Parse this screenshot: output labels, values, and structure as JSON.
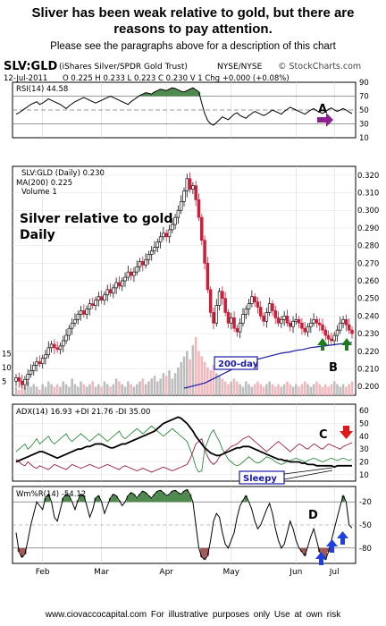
{
  "header": {
    "title_line1": "Sliver has been weak relative to gold, but there are",
    "title_line2": "reasons to pay attention.",
    "subtitle": "Please see the paragraphs above for a description of this chart"
  },
  "footer": {
    "text": "www.ciovaccocapital.com   For illustrative purposes only   Use at own risk"
  },
  "info": {
    "symbol": "SLV:GLD",
    "description": "(iShares Silver/SPDR Gold Trust)",
    "exchange": "NYSE/NYSE",
    "watermark": "© StockCharts.com",
    "date": "12-Jul-2011",
    "ohlc": "O 0.225  H 0.233  L 0.223  C 0.230  V 1  Chg +0.000 (+0.08%)"
  },
  "colors": {
    "up": "#111111",
    "down": "#cc1f3a",
    "ma": "#1a1aa6",
    "adx": "#000000",
    "plus_di": "#2e8b3e",
    "minus_di": "#9c1f46",
    "fill_green": "#4f8a4f",
    "fill_red": "#a05a5a",
    "vol_up": "#bdbdbd",
    "vol_down": "#f2b8bd",
    "arrow_purple": "#8e1f8e",
    "arrow_green": "#1d7c1d",
    "arrow_red": "#e01818",
    "arrow_blue": "#1f3fe0"
  },
  "chart_data": [
    {
      "type": "line",
      "panel": "RSI",
      "legend": "RSI(14) 44.58",
      "ylim": [
        10,
        90
      ],
      "ticks": [
        10,
        30,
        50,
        70,
        90
      ],
      "levels": [
        70,
        30
      ],
      "series": [
        {
          "name": "RSI(14)",
          "values": [
            44,
            46,
            49,
            52,
            55,
            58,
            60,
            62,
            58,
            60,
            63,
            66,
            64,
            62,
            60,
            58,
            55,
            52,
            56,
            59,
            62,
            64,
            66,
            68,
            66,
            64,
            62,
            60,
            62,
            64,
            66,
            68,
            70,
            68,
            66,
            64,
            62,
            60,
            58,
            62,
            65,
            68,
            71,
            73,
            75,
            74,
            73,
            76,
            78,
            80,
            79,
            78,
            80,
            82,
            81,
            79,
            77,
            76,
            78,
            80,
            82,
            79,
            76,
            60,
            45,
            35,
            30,
            28,
            32,
            36,
            40,
            38,
            36,
            40,
            44,
            46,
            42,
            40,
            38,
            42,
            45,
            48,
            46,
            44,
            42,
            44,
            47,
            50,
            48,
            46,
            44,
            48,
            51,
            54,
            52,
            50,
            48,
            46,
            44,
            47,
            50,
            52,
            49,
            47,
            45,
            48,
            51,
            53,
            50,
            48,
            50,
            52,
            50,
            47,
            45
          ]
        }
      ]
    },
    {
      "type": "candlestick",
      "panel": "Price",
      "legend_price": "SLV:GLD (Daily) 0.230",
      "legend_ma": "MA(200) 0.225",
      "legend_volume": "Volume 1",
      "annotation": "Silver relative to gold\nDaily",
      "ylim": [
        0.195,
        0.325
      ],
      "ticks": [
        0.2,
        0.21,
        0.22,
        0.23,
        0.24,
        0.25,
        0.26,
        0.27,
        0.28,
        0.29,
        0.3,
        0.31,
        0.32
      ],
      "volume_ticks": [
        5,
        10,
        15
      ],
      "close": [
        0.205,
        0.203,
        0.201,
        0.204,
        0.207,
        0.209,
        0.212,
        0.214,
        0.213,
        0.216,
        0.218,
        0.222,
        0.224,
        0.222,
        0.221,
        0.223,
        0.226,
        0.229,
        0.233,
        0.236,
        0.238,
        0.241,
        0.243,
        0.241,
        0.244,
        0.247,
        0.246,
        0.249,
        0.251,
        0.249,
        0.252,
        0.255,
        0.253,
        0.256,
        0.259,
        0.257,
        0.26,
        0.262,
        0.265,
        0.263,
        0.265,
        0.268,
        0.271,
        0.269,
        0.272,
        0.275,
        0.277,
        0.279,
        0.282,
        0.285,
        0.287,
        0.285,
        0.289,
        0.292,
        0.296,
        0.3,
        0.305,
        0.311,
        0.318,
        0.312,
        0.314,
        0.306,
        0.296,
        0.283,
        0.27,
        0.255,
        0.242,
        0.236,
        0.246,
        0.254,
        0.25,
        0.242,
        0.236,
        0.239,
        0.233,
        0.231,
        0.236,
        0.241,
        0.244,
        0.247,
        0.251,
        0.248,
        0.245,
        0.24,
        0.237,
        0.242,
        0.247,
        0.243,
        0.239,
        0.236,
        0.238,
        0.24,
        0.236,
        0.234,
        0.237,
        0.238,
        0.236,
        0.233,
        0.231,
        0.234,
        0.236,
        0.238,
        0.236,
        0.235,
        0.232,
        0.229,
        0.227,
        0.226,
        0.229,
        0.232,
        0.236,
        0.238,
        0.235,
        0.232,
        0.23
      ],
      "ma200": [
        0.199,
        0.2,
        0.201,
        0.202,
        0.204,
        0.206,
        0.208,
        0.21,
        0.212,
        0.214,
        0.215,
        0.216,
        0.217,
        0.218,
        0.219,
        0.2195,
        0.2205,
        0.221,
        0.222,
        0.2225,
        0.223,
        0.2235,
        0.224,
        0.2245,
        0.225
      ],
      "volume": [
        3,
        2,
        4,
        3,
        5,
        3,
        4,
        3,
        2,
        4,
        3,
        5,
        4,
        3,
        4,
        3,
        5,
        4,
        3,
        6,
        4,
        3,
        5,
        4,
        3,
        4,
        5,
        3,
        4,
        3,
        5,
        4,
        3,
        4,
        6,
        5,
        4,
        3,
        5,
        4,
        3,
        4,
        5,
        6,
        4,
        5,
        6,
        7,
        5,
        6,
        8,
        7,
        9,
        6,
        8,
        10,
        12,
        14,
        16,
        13,
        18,
        21,
        16,
        14,
        12,
        10,
        9,
        11,
        8,
        7,
        6,
        5,
        4,
        5,
        6,
        5,
        4,
        3,
        5,
        4,
        3,
        4,
        5,
        4,
        3,
        4,
        5,
        4,
        3,
        4,
        3,
        4,
        5,
        4,
        3,
        4,
        3,
        4,
        5,
        4,
        3,
        4,
        5,
        4,
        3,
        4,
        3,
        4,
        5,
        4,
        3,
        4,
        3,
        4,
        5
      ]
    },
    {
      "type": "line",
      "panel": "ADX",
      "legend": "ADX(14) 16.93  +DI 21.76  -DI 35.00",
      "ylim": [
        5,
        65
      ],
      "ticks": [
        10,
        20,
        30,
        40,
        50,
        60
      ],
      "series": [
        {
          "name": "ADX(14)",
          "values": [
            20,
            21,
            22,
            23,
            24,
            25,
            26,
            27,
            28,
            28,
            27,
            26,
            25,
            24,
            23,
            24,
            25,
            26,
            27,
            28,
            29,
            30,
            30,
            31,
            32,
            32,
            33,
            34,
            34,
            34,
            33,
            32,
            31,
            31,
            32,
            33,
            34,
            34,
            35,
            36,
            37,
            38,
            39,
            40,
            41,
            42,
            43,
            44,
            46,
            48,
            50,
            51,
            52,
            53,
            54,
            55,
            54,
            52,
            50,
            47,
            44,
            40,
            37,
            34,
            31,
            29,
            27,
            26,
            25,
            25,
            26,
            27,
            28,
            29,
            30,
            31,
            31,
            32,
            32,
            32,
            31,
            30,
            29,
            28,
            27,
            26,
            25,
            24,
            23,
            22,
            22,
            21,
            21,
            20,
            20,
            20,
            20,
            19,
            19,
            18,
            18,
            18,
            17,
            17,
            17,
            17,
            17,
            17,
            16,
            17,
            17,
            17,
            17,
            17,
            17
          ]
        },
        {
          "name": "+DI",
          "values": [
            28,
            30,
            32,
            34,
            30,
            32,
            35,
            38,
            34,
            36,
            38,
            40,
            36,
            34,
            36,
            38,
            40,
            42,
            38,
            36,
            38,
            40,
            42,
            40,
            38,
            36,
            38,
            40,
            42,
            40,
            38,
            36,
            38,
            40,
            42,
            44,
            40,
            38,
            40,
            42,
            44,
            46,
            44,
            42,
            44,
            46,
            48,
            46,
            44,
            42,
            40,
            42,
            44,
            46,
            44,
            42,
            40,
            38,
            36,
            30,
            24,
            16,
            12,
            13,
            30,
            36,
            42,
            45,
            40,
            36,
            30,
            26,
            22,
            20,
            18,
            17,
            18,
            20,
            22,
            24,
            22,
            20,
            19,
            20,
            22,
            24,
            23,
            22,
            20,
            19,
            18,
            19,
            20,
            21,
            22,
            23,
            22,
            21,
            20,
            21,
            22,
            23,
            22,
            21,
            20,
            21,
            22,
            23,
            22,
            21,
            22,
            23,
            22,
            21,
            22
          ]
        },
        {
          "name": "-DI",
          "values": [
            22,
            20,
            18,
            17,
            20,
            18,
            16,
            15,
            17,
            16,
            15,
            14,
            16,
            18,
            17,
            16,
            15,
            14,
            16,
            18,
            17,
            16,
            15,
            16,
            17,
            18,
            17,
            16,
            15,
            16,
            17,
            18,
            17,
            16,
            15,
            14,
            16,
            17,
            16,
            15,
            14,
            13,
            14,
            15,
            14,
            13,
            12,
            13,
            14,
            15,
            16,
            15,
            14,
            13,
            14,
            15,
            16,
            17,
            18,
            22,
            28,
            34,
            36,
            38,
            30,
            24,
            20,
            18,
            20,
            24,
            26,
            28,
            30,
            32,
            33,
            34,
            36,
            38,
            39,
            40,
            38,
            36,
            34,
            32,
            30,
            28,
            30,
            32,
            34,
            36,
            34,
            32,
            30,
            28,
            30,
            32,
            34,
            33,
            31,
            30,
            32,
            34,
            33,
            31,
            30,
            32,
            34,
            33,
            32,
            31,
            30,
            32,
            33,
            34,
            35
          ]
        }
      ]
    },
    {
      "type": "line",
      "panel": "Williams %R",
      "legend": "Wm%R(14) -54.12",
      "ylim": [
        -100,
        0
      ],
      "ticks": [
        -80,
        -50,
        -20
      ],
      "levels": [
        -20,
        -80
      ],
      "series": [
        {
          "name": "Wm%R(14)",
          "values": [
            -60,
            -85,
            -92,
            -88,
            -70,
            -50,
            -35,
            -20,
            -25,
            -30,
            -15,
            -10,
            -20,
            -40,
            -45,
            -30,
            -15,
            -10,
            -12,
            -20,
            -30,
            -18,
            -10,
            -12,
            -25,
            -40,
            -30,
            -15,
            -12,
            -20,
            -35,
            -25,
            -15,
            -10,
            -12,
            -18,
            -25,
            -20,
            -12,
            -8,
            -10,
            -15,
            -10,
            -6,
            -8,
            -12,
            -15,
            -10,
            -6,
            -5,
            -8,
            -12,
            -10,
            -6,
            -5,
            -8,
            -10,
            -6,
            -4,
            -10,
            -20,
            -50,
            -80,
            -92,
            -95,
            -90,
            -70,
            -45,
            -35,
            -40,
            -60,
            -75,
            -80,
            -70,
            -60,
            -40,
            -25,
            -18,
            -12,
            -20,
            -30,
            -45,
            -55,
            -50,
            -40,
            -30,
            -22,
            -35,
            -55,
            -70,
            -80,
            -75,
            -60,
            -45,
            -55,
            -70,
            -80,
            -85,
            -90,
            -78,
            -65,
            -55,
            -70,
            -85,
            -92,
            -95,
            -85,
            -70,
            -55,
            -40,
            -25,
            -12,
            -20,
            -50,
            -54
          ]
        }
      ]
    }
  ],
  "x_axis": {
    "months": [
      "Feb",
      "Mar",
      "Apr",
      "May",
      "Jun",
      "Jul"
    ],
    "month_index": [
      9,
      29,
      51,
      73,
      95,
      108
    ]
  },
  "annotations": {
    "A": "A",
    "B": "B",
    "C": "C",
    "D": "D",
    "box_200": "200-day",
    "box_sleepy": "Sleepy"
  }
}
